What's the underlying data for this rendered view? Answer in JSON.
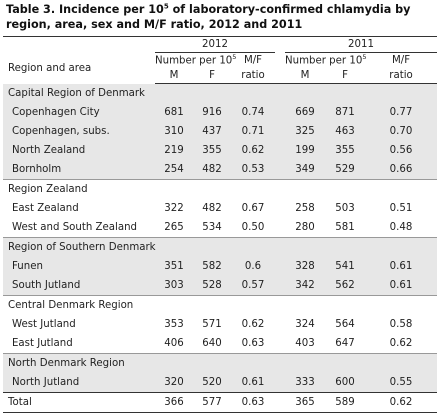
{
  "title_line1": "Table 3. Incidence per 10",
  "title_sup": "5",
  "title_line1_rest": " of laboratory-confirmed chlamydia by",
  "title_line2": "region, area, sex and M/F ratio, 2012 and 2011",
  "header": {
    "year_2012": "2012",
    "year_2011": "2011",
    "region_area": "Region and area",
    "number_per": "Number per 10",
    "number_sup": "5",
    "mf": "M/F",
    "ratio": "ratio",
    "m": "M",
    "f": "F"
  },
  "sections": [
    {
      "name": "Capital Region of Denmark",
      "rows": [
        {
          "area": "Copenhagen City",
          "m12": "681",
          "f12": "916",
          "r12": "0.74",
          "m11": "669",
          "f11": "871",
          "r11": "0.77"
        },
        {
          "area": "Copenhagen, subs.",
          "m12": "310",
          "f12": "437",
          "r12": "0.71",
          "m11": "325",
          "f11": "463",
          "r11": "0.70"
        },
        {
          "area": "North Zealand",
          "m12": "219",
          "f12": "355",
          "r12": "0.62",
          "m11": "199",
          "f11": "355",
          "r11": "0.56"
        },
        {
          "area": "Bornholm",
          "m12": "254",
          "f12": "482",
          "r12": "0.53",
          "m11": "349",
          "f11": "529",
          "r11": "0.66"
        }
      ]
    },
    {
      "name": "Region Zealand",
      "rows": [
        {
          "area": "East Zealand",
          "m12": "322",
          "f12": "482",
          "r12": "0.67",
          "m11": "258",
          "f11": "503",
          "r11": "0.51"
        },
        {
          "area": "West and South Zealand",
          "m12": "265",
          "f12": "534",
          "r12": "0.50",
          "m11": "280",
          "f11": "581",
          "r11": "0.48"
        }
      ]
    },
    {
      "name": "Region of Southern Denmark",
      "rows": [
        {
          "area": "Funen",
          "m12": "351",
          "f12": "582",
          "r12": "0.6",
          "m11": "328",
          "f11": "541",
          "r11": "0.61"
        },
        {
          "area": "South Jutland",
          "m12": "303",
          "f12": "528",
          "r12": "0.57",
          "m11": "342",
          "f11": "562",
          "r11": "0.61"
        }
      ]
    },
    {
      "name": "Central Denmark Region",
      "rows": [
        {
          "area": "West Jutland",
          "m12": "353",
          "f12": "571",
          "r12": "0.62",
          "m11": "324",
          "f11": "564",
          "r11": "0.58"
        },
        {
          "area": "East Jutland",
          "m12": "406",
          "f12": "640",
          "r12": "0.63",
          "m11": "403",
          "f11": "647",
          "r11": "0.62"
        }
      ]
    },
    {
      "name": "North Denmark Region",
      "rows": [
        {
          "area": "North Jutland",
          "m12": "320",
          "f12": "520",
          "r12": "0.61",
          "m11": "333",
          "f11": "600",
          "r11": "0.55"
        }
      ]
    }
  ],
  "total": {
    "area": "Total",
    "m12": "366",
    "f12": "577",
    "r12": "0.63",
    "m11": "365",
    "f11": "589",
    "r11": "0.62"
  },
  "colors": {
    "shade": "#e7e7e7",
    "rule": "#333333"
  }
}
